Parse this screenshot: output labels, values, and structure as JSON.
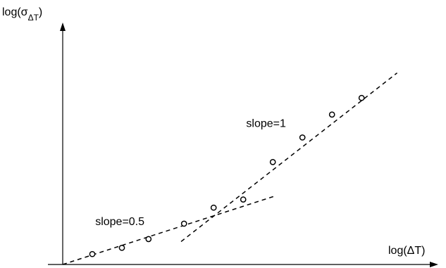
{
  "chart_data": {
    "type": "scatter",
    "xlabel": "log(ΔT)",
    "ylabel_base": "log(σ",
    "ylabel_sub": "ΔT",
    "ylabel_close": ")",
    "grid": false,
    "legend": "none",
    "xlim": [
      0,
      10
    ],
    "ylim": [
      0,
      10
    ],
    "points": [
      {
        "x": 1.0,
        "y": 0.5
      },
      {
        "x": 2.0,
        "y": 0.8
      },
      {
        "x": 2.9,
        "y": 1.22
      },
      {
        "x": 4.1,
        "y": 1.96
      },
      {
        "x": 5.1,
        "y": 2.73
      },
      {
        "x": 6.1,
        "y": 3.12
      },
      {
        "x": 7.1,
        "y": 4.92
      },
      {
        "x": 8.1,
        "y": 6.1
      },
      {
        "x": 9.1,
        "y": 7.2
      },
      {
        "x": 10.1,
        "y": 8.0
      }
    ],
    "fit_lines": [
      {
        "label": "slope=0.5",
        "x": [
          0,
          7.2
        ],
        "y": [
          0,
          3.3
        ]
      },
      {
        "label": "slope=1",
        "x": [
          4.0,
          11.3
        ],
        "y": [
          1.1,
          9.2
        ]
      }
    ],
    "annotations": [
      {
        "text": "slope=0.5",
        "x": 1.1,
        "y": 1.9
      },
      {
        "text": "slope=1",
        "x": 6.2,
        "y": 6.6
      }
    ]
  }
}
